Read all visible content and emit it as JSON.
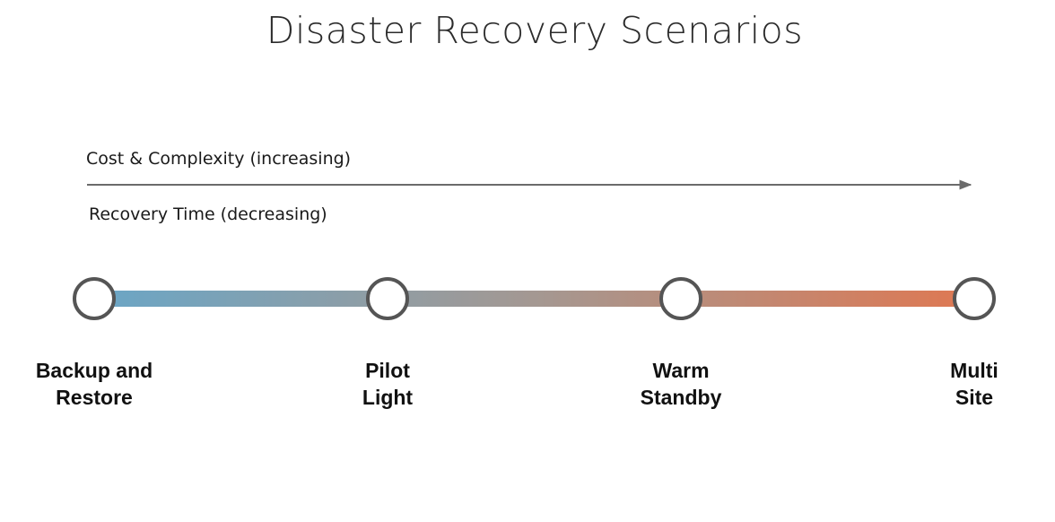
{
  "title": "Disaster Recovery Scenarios",
  "axis": {
    "top_label": "Cost & Complexity (increasing)",
    "bottom_label": "Recovery Time (decreasing)"
  },
  "colors": {
    "gradient_start": "#6aa6c6",
    "gradient_mid": "#a49892",
    "gradient_end": "#df7852",
    "node_stroke": "#555555",
    "arrow": "#6b6b6b"
  },
  "stages": [
    {
      "line1": "Backup and",
      "line2": "Restore"
    },
    {
      "line1": "Pilot",
      "line2": "Light"
    },
    {
      "line1": "Warm",
      "line2": "Standby"
    },
    {
      "line1": "Multi",
      "line2": "Site"
    }
  ]
}
